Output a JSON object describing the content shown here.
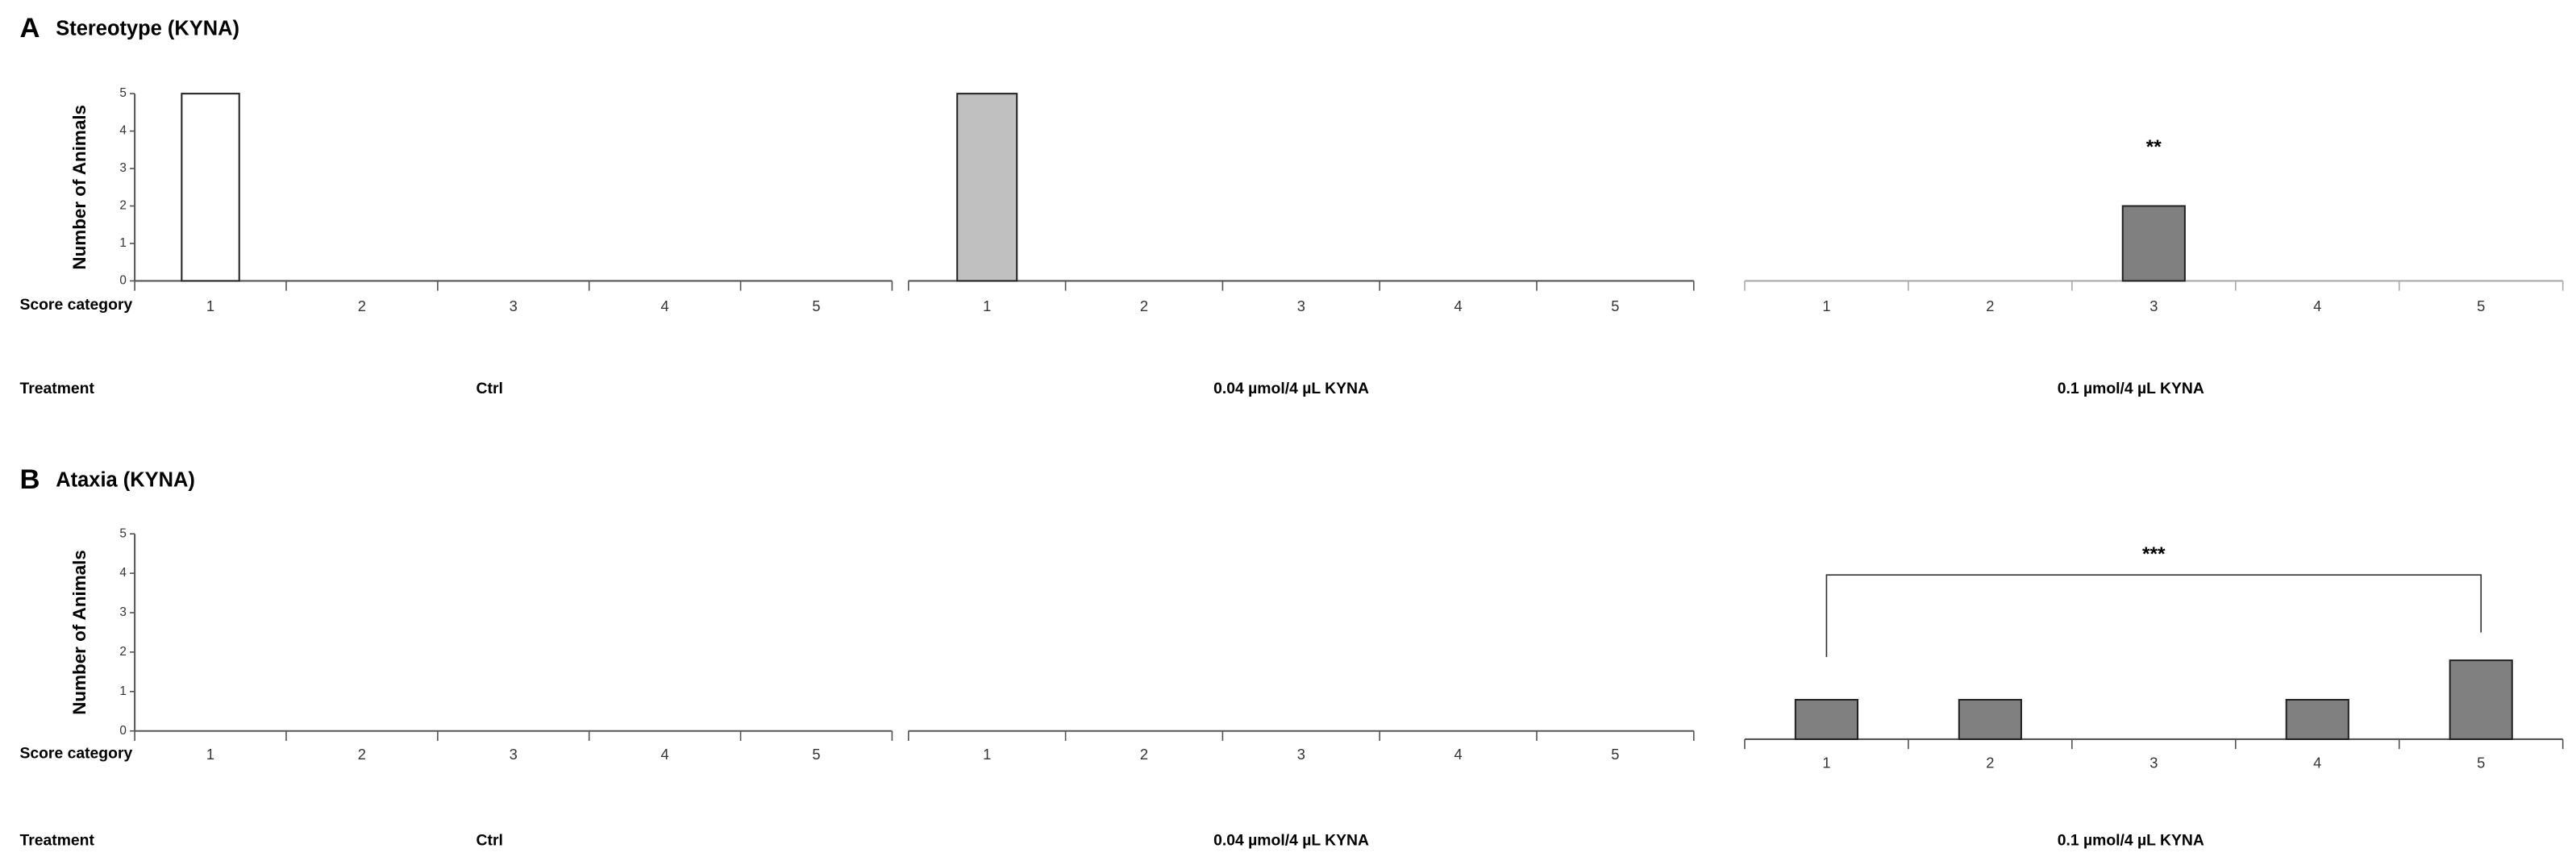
{
  "panels": [
    {
      "letter": "A",
      "title": "Stereotype (KYNA)",
      "ylabel": "Number of Animals",
      "x_row_label": "Score category",
      "treatment_row_label": "Treatment"
    },
    {
      "letter": "B",
      "title": "Ataxia (KYNA)",
      "ylabel": "Number of Animals",
      "x_row_label": "Score category",
      "treatment_row_label": "Treatment"
    }
  ],
  "chart_data": [
    {
      "type": "bar",
      "categories": [
        "1",
        "2",
        "3",
        "4",
        "5"
      ],
      "values": [
        5,
        0,
        0,
        0,
        0
      ],
      "color": "#ffffff",
      "ylim": [
        0,
        5
      ],
      "yticks": [
        0,
        1,
        2,
        3,
        4,
        5
      ],
      "xlabel": "Ctrl"
    },
    {
      "type": "bar",
      "categories": [
        "1",
        "2",
        "3",
        "4",
        "5"
      ],
      "values": [
        5,
        0,
        0,
        0,
        0
      ],
      "color": "#c0c0c0",
      "ylim": [
        0,
        5
      ],
      "xlabel": "0.04 µmol/4 µL KYNA"
    },
    {
      "type": "bar",
      "categories": [
        "1",
        "2",
        "3",
        "4",
        "5"
      ],
      "values": [
        0,
        0,
        2,
        0,
        0
      ],
      "color": "#808080",
      "ylim": [
        0,
        5
      ],
      "xlabel": "0.1 µmol/4 µL KYNA",
      "annotations": [
        {
          "text": "**",
          "span": [
            "3",
            "3"
          ]
        }
      ]
    },
    {
      "type": "bar",
      "categories": [
        "1",
        "2",
        "3",
        "4",
        "5"
      ],
      "values": [
        0,
        0,
        0,
        0,
        0
      ],
      "color": "#808080",
      "ylim": [
        0,
        5
      ],
      "yticks": [
        0,
        1,
        2,
        3,
        4,
        5
      ],
      "xlabel": "Ctrl"
    },
    {
      "type": "bar",
      "categories": [
        "1",
        "2",
        "3",
        "4",
        "5"
      ],
      "values": [
        0,
        0,
        0,
        0,
        0
      ],
      "color": "#808080",
      "ylim": [
        0,
        5
      ],
      "xlabel": "0.04 µmol/4 µL KYNA"
    },
    {
      "type": "bar",
      "categories": [
        "1",
        "2",
        "3",
        "4",
        "5"
      ],
      "values": [
        1,
        1,
        0,
        1,
        2
      ],
      "color": "#808080",
      "ylim": [
        0,
        5
      ],
      "xlabel": "0.1 µmol/4 µL KYNA",
      "annotations": [
        {
          "text": "***",
          "span": [
            "1",
            "5"
          ]
        }
      ]
    }
  ]
}
